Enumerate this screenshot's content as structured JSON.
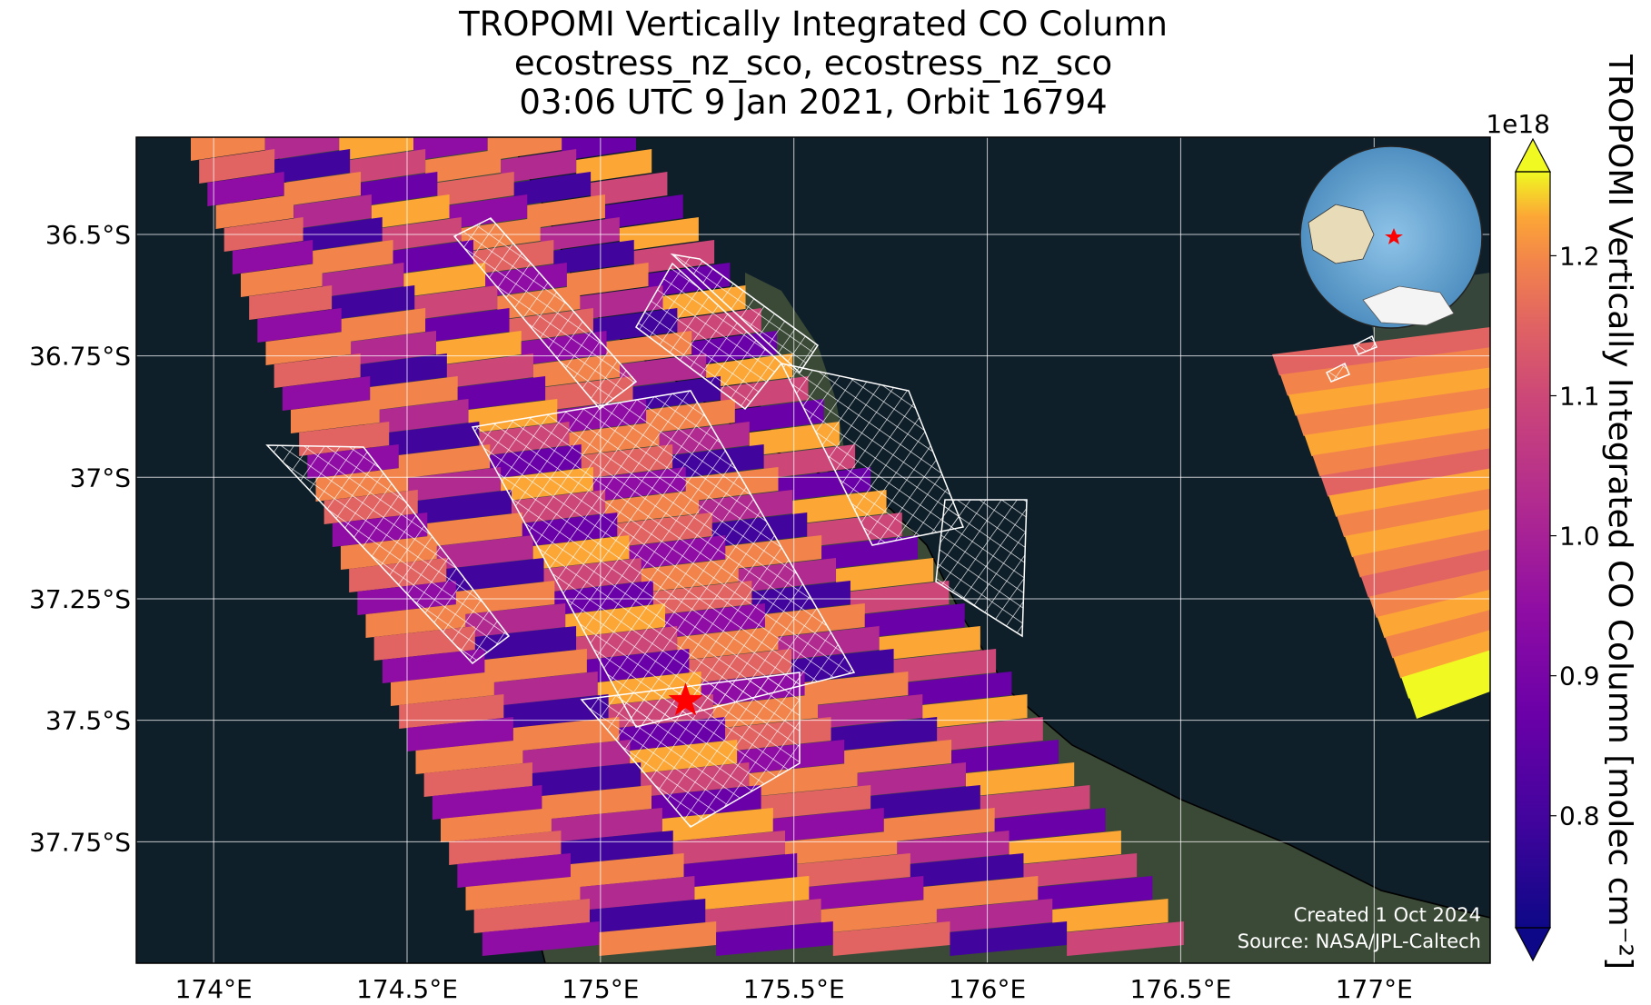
{
  "title": {
    "line1": "TROPOMI Vertically Integrated CO Column",
    "line2": "ecostress_nz_sco, ecostress_nz_sco",
    "line3": "03:06 UTC 9 Jan 2021, Orbit 16794"
  },
  "map": {
    "lat_ticks": [
      "36.5°S",
      "36.75°S",
      "37°S",
      "37.25°S",
      "37.5°S",
      "37.75°S"
    ],
    "lon_ticks": [
      "174°E",
      "174.5°E",
      "175°E",
      "175.5°E",
      "176°E",
      "176.5°E",
      "177°E"
    ],
    "lon_range": [
      173.8,
      177.3
    ],
    "lat_range": [
      -36.3,
      -38.0
    ],
    "target_marker": {
      "lon": 175.22,
      "lat": -37.46,
      "color": "#ff0000"
    },
    "credit_line1": "Created 1 Oct 2024",
    "credit_line2": "Source: NASA/JPL-Caltech",
    "colors": {
      "ocean": "#0f1f2a",
      "land": "#3b4a36",
      "grid": "#ffffff",
      "coast": "#000000"
    }
  },
  "colorbar": {
    "label": "TROPOMI Vertically Integrated CO Column [molec cm⁻²]",
    "multiplier": "1e18",
    "ticks": [
      "0.8",
      "0.9",
      "1.0",
      "1.1",
      "1.2"
    ],
    "range": [
      0.72,
      1.26
    ],
    "colormap": "plasma"
  },
  "inset": {
    "description_icon": "globe-icon",
    "marker_color": "#ff0000"
  }
}
